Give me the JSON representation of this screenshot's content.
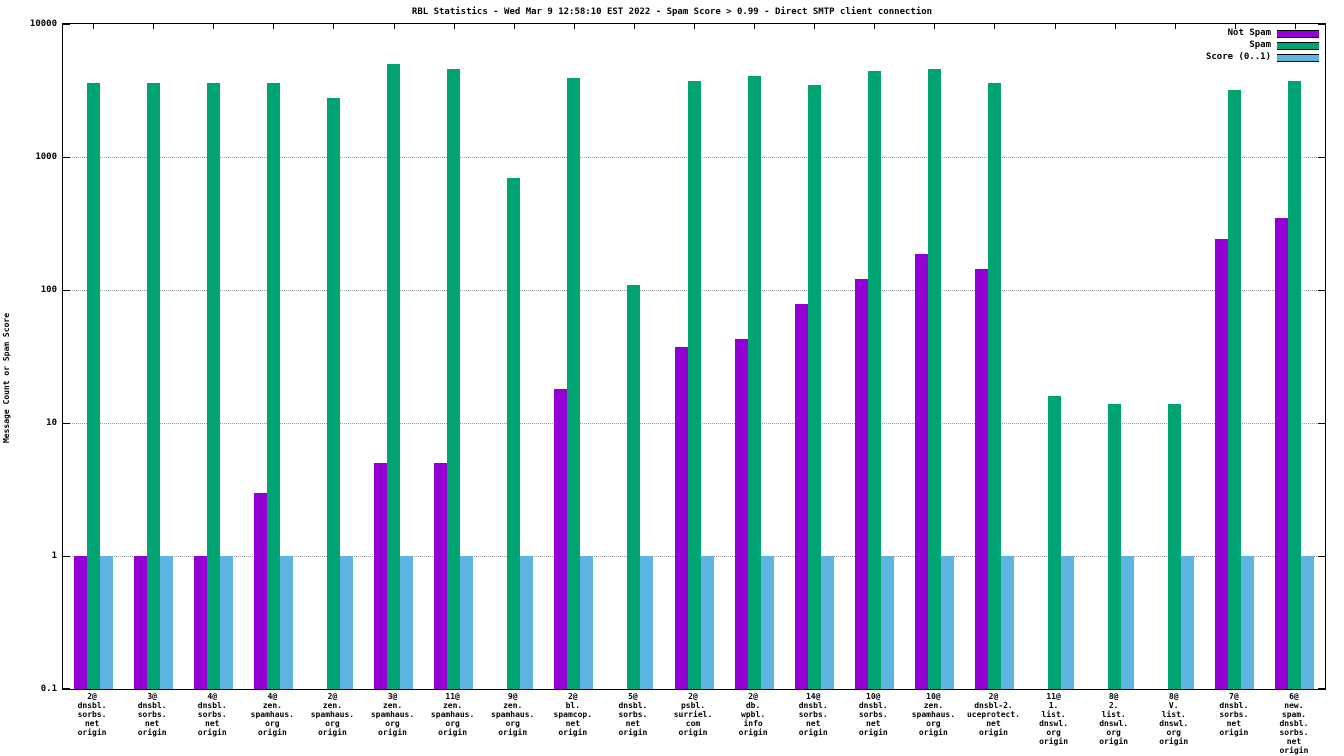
{
  "chart_data": {
    "type": "bar",
    "title": "RBL Statistics - Wed Mar  9 12:58:10 EST 2022 - Spam Score > 0.99 - Direct SMTP client connection",
    "ylabel": "Message Count or Spam Score",
    "xlabel": "",
    "log_scale": true,
    "ylim": [
      0.1,
      10000
    ],
    "yticks": [
      {
        "label": "10000",
        "value": 10000
      },
      {
        "label": "1000",
        "value": 1000
      },
      {
        "label": "100",
        "value": 100
      },
      {
        "label": "10",
        "value": 10
      },
      {
        "label": "1",
        "value": 1
      },
      {
        "label": "0.1",
        "value": 0.1
      }
    ],
    "grid": "horizontal-dotted",
    "legend_position": "top-right",
    "categories": [
      "2@\ndnsbl.\nsorbs.\nnet\norigin",
      "3@\ndnsbl.\nsorbs.\nnet\norigin",
      "4@\ndnsbl.\nsorbs.\nnet\norigin",
      "4@\nzen.\nspamhaus.\norg\norigin",
      "2@\nzen.\nspamhaus.\norg\norigin",
      "3@\nzen.\nspamhaus.\norg\norigin",
      "11@\nzen.\nspamhaus.\norg\norigin",
      "9@\nzen.\nspamhaus.\norg\norigin",
      "2@\nbl.\nspamcop.\nnet\norigin",
      "5@\ndnsbl.\nsorbs.\nnet\norigin",
      "2@\npsbl.\nsurriel.\ncom\norigin",
      "2@\ndb.\nwpbl.\ninfo\norigin",
      "14@\ndnsbl.\nsorbs.\nnet\norigin",
      "10@\ndnsbl.\nsorbs.\nnet\norigin",
      "10@\nzen.\nspamhaus.\norg\norigin",
      "2@\ndnsbl-2.\nuceprotect.\nnet\norigin",
      "11@\n1.\nlist.\ndnswl.\norg\norigin",
      "8@\n2.\nlist.\ndnswl.\norg\norigin",
      "8@\nV.\nlist.\ndnswl.\norg\norigin",
      "7@\ndnsbl.\nsorbs.\nnet\norigin",
      "6@\nnew.\nspam.\ndnsbl.\nsorbs.\nnet\norigin"
    ],
    "series": [
      {
        "name": "Not Spam",
        "color": "#9400d3",
        "values": [
          1,
          1,
          1,
          3,
          null,
          5,
          5,
          null,
          18,
          null,
          37,
          43,
          78,
          120,
          185,
          145,
          null,
          null,
          null,
          240,
          350
        ]
      },
      {
        "name": "Spam",
        "color": "#00a473",
        "values": [
          3600,
          3600,
          3600,
          3600,
          2800,
          5000,
          4600,
          700,
          3900,
          110,
          3700,
          4100,
          3500,
          4400,
          4600,
          3600,
          16,
          14,
          14,
          3200,
          3700
        ]
      },
      {
        "name": "Score (0..1)",
        "color": "#5eb4e2",
        "values": [
          1,
          1,
          1,
          1,
          1,
          1,
          1,
          1,
          1,
          1,
          1,
          1,
          1,
          1,
          1,
          1,
          1,
          1,
          1,
          1,
          1
        ]
      }
    ]
  }
}
